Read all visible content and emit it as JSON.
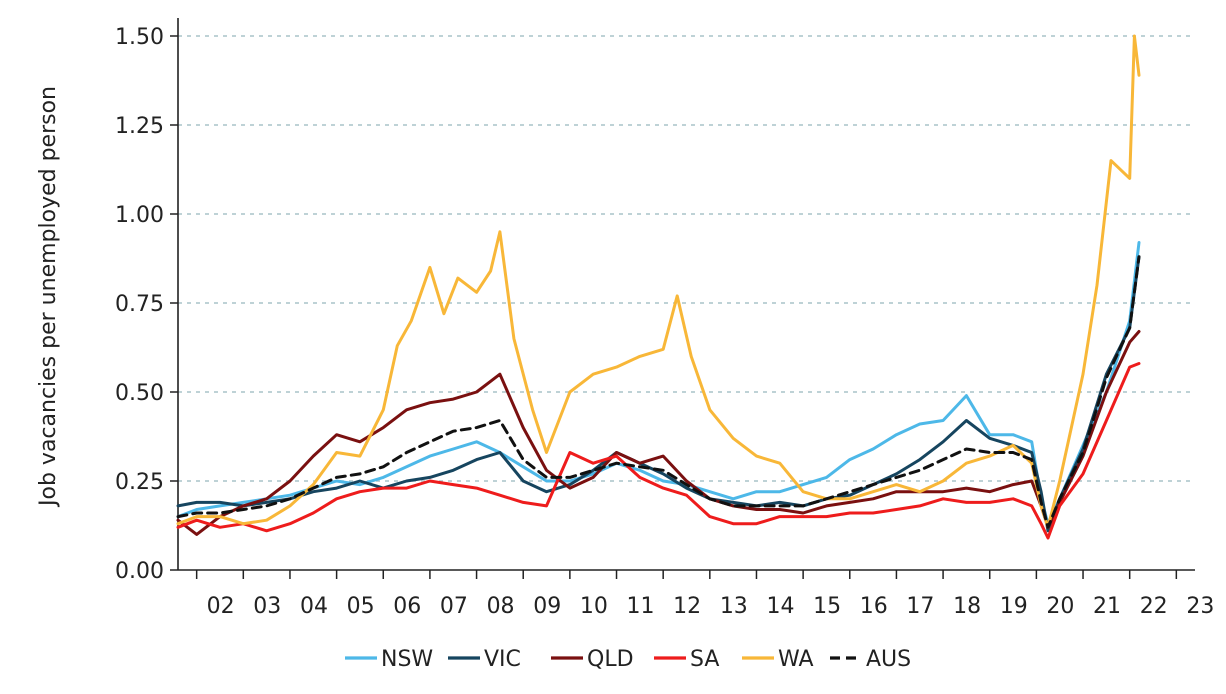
{
  "chart_data": {
    "type": "line",
    "ylabel": "Job vacancies per unemployed person",
    "xlabel": "",
    "ylim": [
      0,
      1.5
    ],
    "xlim": [
      2001.6,
      2023.4
    ],
    "y_ticks": [
      {
        "value": 0,
        "label": "0.00"
      },
      {
        "value": 0.25,
        "label": "0.25"
      },
      {
        "value": 0.5,
        "label": "0.50"
      },
      {
        "value": 0.75,
        "label": "0.75"
      },
      {
        "value": 1.0,
        "label": "1.00"
      },
      {
        "value": 1.25,
        "label": "1.25"
      },
      {
        "value": 1.5,
        "label": "1.50"
      }
    ],
    "x_ticks": [
      {
        "value": 2002,
        "label": "02"
      },
      {
        "value": 2003,
        "label": "03"
      },
      {
        "value": 2004,
        "label": "04"
      },
      {
        "value": 2005,
        "label": "05"
      },
      {
        "value": 2006,
        "label": "06"
      },
      {
        "value": 2007,
        "label": "07"
      },
      {
        "value": 2008,
        "label": "08"
      },
      {
        "value": 2009,
        "label": "09"
      },
      {
        "value": 2010,
        "label": "10"
      },
      {
        "value": 2011,
        "label": "11"
      },
      {
        "value": 2012,
        "label": "12"
      },
      {
        "value": 2013,
        "label": "13"
      },
      {
        "value": 2014,
        "label": "14"
      },
      {
        "value": 2015,
        "label": "15"
      },
      {
        "value": 2016,
        "label": "16"
      },
      {
        "value": 2017,
        "label": "17"
      },
      {
        "value": 2018,
        "label": "18"
      },
      {
        "value": 2019,
        "label": "19"
      },
      {
        "value": 2020,
        "label": "20"
      },
      {
        "value": 2021,
        "label": "21"
      },
      {
        "value": 2022,
        "label": "22"
      },
      {
        "value": 2023,
        "label": "23"
      }
    ],
    "grid": "horizontal-dashed",
    "legend_position": "bottom",
    "series": [
      {
        "name": "NSW",
        "color": "#4db8e8",
        "dash": "solid",
        "x": [
          2001.6,
          2002,
          2002.5,
          2003,
          2003.5,
          2004,
          2004.5,
          2005,
          2005.5,
          2006,
          2006.5,
          2007,
          2007.5,
          2008,
          2008.5,
          2009,
          2009.5,
          2010,
          2010.5,
          2011,
          2011.5,
          2012,
          2012.5,
          2013,
          2013.5,
          2014,
          2014.5,
          2015,
          2015.5,
          2016,
          2016.5,
          2017,
          2017.5,
          2018,
          2018.5,
          2019,
          2019.5,
          2019.9,
          2020.1,
          2020.25,
          2020.5,
          2021,
          2021.5,
          2022,
          2022.2
        ],
        "y": [
          0.15,
          0.17,
          0.18,
          0.19,
          0.2,
          0.21,
          0.23,
          0.25,
          0.24,
          0.26,
          0.29,
          0.32,
          0.34,
          0.36,
          0.33,
          0.29,
          0.25,
          0.25,
          0.27,
          0.3,
          0.28,
          0.25,
          0.24,
          0.22,
          0.2,
          0.22,
          0.22,
          0.24,
          0.26,
          0.31,
          0.34,
          0.38,
          0.41,
          0.42,
          0.49,
          0.38,
          0.38,
          0.36,
          0.2,
          0.13,
          0.2,
          0.35,
          0.5,
          0.7,
          0.92
        ]
      },
      {
        "name": "VIC",
        "color": "#16455f",
        "dash": "solid",
        "x": [
          2001.6,
          2002,
          2002.5,
          2003,
          2003.5,
          2004,
          2004.5,
          2005,
          2005.5,
          2006,
          2006.5,
          2007,
          2007.5,
          2008,
          2008.5,
          2009,
          2009.5,
          2010,
          2010.5,
          2011,
          2011.5,
          2012,
          2012.5,
          2013,
          2013.5,
          2014,
          2014.5,
          2015,
          2015.5,
          2016,
          2016.5,
          2017,
          2017.5,
          2018,
          2018.5,
          2019,
          2019.5,
          2019.9,
          2020.1,
          2020.25,
          2020.5,
          2021,
          2021.5,
          2022,
          2022.2
        ],
        "y": [
          0.18,
          0.19,
          0.19,
          0.18,
          0.19,
          0.2,
          0.22,
          0.23,
          0.25,
          0.23,
          0.25,
          0.26,
          0.28,
          0.31,
          0.33,
          0.25,
          0.22,
          0.24,
          0.28,
          0.33,
          0.3,
          0.27,
          0.23,
          0.2,
          0.19,
          0.18,
          0.19,
          0.18,
          0.2,
          0.21,
          0.24,
          0.27,
          0.31,
          0.36,
          0.42,
          0.37,
          0.35,
          0.33,
          0.22,
          0.11,
          0.2,
          0.34,
          0.55,
          0.68,
          0.88
        ]
      },
      {
        "name": "QLD",
        "color": "#7a1010",
        "dash": "solid",
        "x": [
          2001.6,
          2002,
          2002.5,
          2003,
          2003.5,
          2004,
          2004.5,
          2005,
          2005.5,
          2006,
          2006.5,
          2007,
          2007.5,
          2008,
          2008.5,
          2009,
          2009.5,
          2010,
          2010.5,
          2011,
          2011.5,
          2012,
          2012.5,
          2013,
          2013.5,
          2014,
          2014.5,
          2015,
          2015.5,
          2016,
          2016.5,
          2017,
          2017.5,
          2018,
          2018.5,
          2019,
          2019.5,
          2019.9,
          2020.1,
          2020.25,
          2020.5,
          2021,
          2021.5,
          2022,
          2022.2
        ],
        "y": [
          0.14,
          0.1,
          0.15,
          0.18,
          0.2,
          0.25,
          0.32,
          0.38,
          0.36,
          0.4,
          0.45,
          0.47,
          0.48,
          0.5,
          0.55,
          0.4,
          0.28,
          0.23,
          0.26,
          0.33,
          0.3,
          0.32,
          0.25,
          0.2,
          0.18,
          0.17,
          0.17,
          0.16,
          0.18,
          0.19,
          0.2,
          0.22,
          0.22,
          0.22,
          0.23,
          0.22,
          0.24,
          0.25,
          0.18,
          0.12,
          0.19,
          0.32,
          0.5,
          0.64,
          0.67
        ]
      },
      {
        "name": "SA",
        "color": "#ee1c1c",
        "dash": "solid",
        "x": [
          2001.6,
          2002,
          2002.5,
          2003,
          2003.5,
          2004,
          2004.5,
          2005,
          2005.5,
          2006,
          2006.5,
          2007,
          2007.5,
          2008,
          2008.5,
          2009,
          2009.5,
          2010,
          2010.5,
          2011,
          2011.5,
          2012,
          2012.5,
          2013,
          2013.5,
          2014,
          2014.5,
          2015,
          2015.5,
          2016,
          2016.5,
          2017,
          2017.5,
          2018,
          2018.5,
          2019,
          2019.5,
          2019.9,
          2020.1,
          2020.25,
          2020.5,
          2021,
          2021.5,
          2022,
          2022.2
        ],
        "y": [
          0.12,
          0.14,
          0.12,
          0.13,
          0.11,
          0.13,
          0.16,
          0.2,
          0.22,
          0.23,
          0.23,
          0.25,
          0.24,
          0.23,
          0.21,
          0.19,
          0.18,
          0.33,
          0.3,
          0.32,
          0.26,
          0.23,
          0.21,
          0.15,
          0.13,
          0.13,
          0.15,
          0.15,
          0.15,
          0.16,
          0.16,
          0.17,
          0.18,
          0.2,
          0.19,
          0.19,
          0.2,
          0.18,
          0.13,
          0.09,
          0.18,
          0.27,
          0.42,
          0.57,
          0.58
        ]
      },
      {
        "name": "WA",
        "color": "#f8b738",
        "dash": "solid",
        "x": [
          2001.6,
          2002,
          2002.5,
          2003,
          2003.5,
          2004,
          2004.5,
          2005,
          2005.5,
          2006,
          2006.3,
          2006.6,
          2007,
          2007.3,
          2007.6,
          2008,
          2008.3,
          2008.5,
          2008.8,
          2009.2,
          2009.5,
          2010,
          2010.5,
          2011,
          2011.5,
          2012,
          2012.3,
          2012.6,
          2013,
          2013.5,
          2014,
          2014.5,
          2015,
          2015.5,
          2016,
          2016.5,
          2017,
          2017.5,
          2018,
          2018.5,
          2019,
          2019.5,
          2019.9,
          2020.1,
          2020.25,
          2020.5,
          2021,
          2021.3,
          2021.6,
          2022,
          2022.1,
          2022.2
        ],
        "y": [
          0.13,
          0.15,
          0.15,
          0.13,
          0.14,
          0.18,
          0.24,
          0.33,
          0.32,
          0.45,
          0.63,
          0.7,
          0.85,
          0.72,
          0.82,
          0.78,
          0.84,
          0.95,
          0.65,
          0.45,
          0.33,
          0.5,
          0.55,
          0.57,
          0.6,
          0.62,
          0.77,
          0.6,
          0.45,
          0.37,
          0.32,
          0.3,
          0.22,
          0.2,
          0.2,
          0.22,
          0.24,
          0.22,
          0.25,
          0.3,
          0.32,
          0.35,
          0.3,
          0.18,
          0.12,
          0.25,
          0.55,
          0.8,
          1.15,
          1.1,
          1.5,
          1.39
        ]
      },
      {
        "name": "AUS",
        "color": "#111111",
        "dash": "dashed",
        "x": [
          2001.6,
          2002,
          2002.5,
          2003,
          2003.5,
          2004,
          2004.5,
          2005,
          2005.5,
          2006,
          2006.5,
          2007,
          2007.5,
          2008,
          2008.5,
          2009,
          2009.5,
          2010,
          2010.5,
          2011,
          2011.5,
          2012,
          2012.5,
          2013,
          2013.5,
          2014,
          2014.5,
          2015,
          2015.5,
          2016,
          2016.5,
          2017,
          2017.5,
          2018,
          2018.5,
          2019,
          2019.5,
          2019.9,
          2020.1,
          2020.25,
          2020.5,
          2021,
          2021.5,
          2022,
          2022.2
        ],
        "y": [
          0.15,
          0.16,
          0.16,
          0.17,
          0.18,
          0.2,
          0.23,
          0.26,
          0.27,
          0.29,
          0.33,
          0.36,
          0.39,
          0.4,
          0.42,
          0.31,
          0.26,
          0.26,
          0.28,
          0.3,
          0.29,
          0.28,
          0.24,
          0.2,
          0.18,
          0.18,
          0.18,
          0.18,
          0.2,
          0.22,
          0.24,
          0.26,
          0.28,
          0.31,
          0.34,
          0.33,
          0.33,
          0.31,
          0.19,
          0.12,
          0.2,
          0.33,
          0.54,
          0.68,
          0.88
        ]
      }
    ]
  }
}
